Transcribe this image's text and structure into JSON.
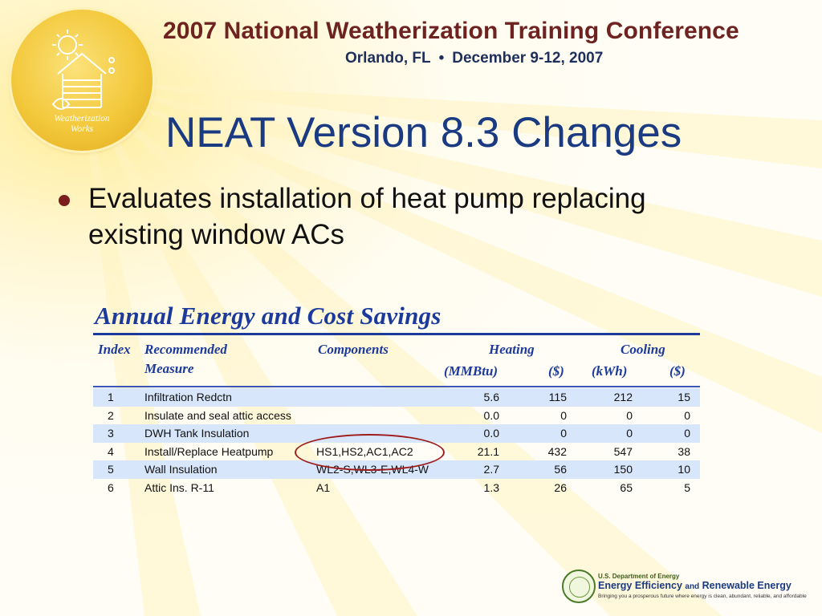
{
  "header": {
    "conference_title": "2007 National Weatherization Training Conference",
    "location": "Orlando, FL",
    "separator": "•",
    "dates": "December 9-12, 2007",
    "logo_text_line1": "Weatherization",
    "logo_text_line2": "Works"
  },
  "slide": {
    "title": "NEAT Version 8.3 Changes",
    "bullets": [
      {
        "text": "Evaluates installation of heat pump replacing existing window ACs"
      }
    ]
  },
  "table": {
    "title": "Annual Energy and Cost Savings",
    "headers": {
      "index": "Index",
      "measure_line1": "Recommended",
      "measure_line2": "Measure",
      "components": "Components",
      "heating": "Heating",
      "cooling": "Cooling",
      "mmbtu": "(MMBtu)",
      "heating_dollars": "($)",
      "kwh": "(kWh)",
      "cooling_dollars": "($)"
    },
    "rows": [
      {
        "index": "1",
        "measure": "Infiltration Redctn",
        "components": "",
        "mmbtu": "5.6",
        "heat_cost": "115",
        "kwh": "212",
        "cool_cost": "15"
      },
      {
        "index": "2",
        "measure": "Insulate and seal attic access",
        "components": "",
        "mmbtu": "0.0",
        "heat_cost": "0",
        "kwh": "0",
        "cool_cost": "0"
      },
      {
        "index": "3",
        "measure": "DWH Tank Insulation",
        "components": "",
        "mmbtu": "0.0",
        "heat_cost": "0",
        "kwh": "0",
        "cool_cost": "0"
      },
      {
        "index": "4",
        "measure": "Install/Replace Heatpump",
        "components": "HS1,HS2,AC1,AC2",
        "mmbtu": "21.1",
        "heat_cost": "432",
        "kwh": "547",
        "cool_cost": "38"
      },
      {
        "index": "5",
        "measure": "Wall Insulation",
        "components": "WL2-S,WL3-E,WL4-W",
        "mmbtu": "2.7",
        "heat_cost": "56",
        "kwh": "150",
        "cool_cost": "10"
      },
      {
        "index": "6",
        "measure": "Attic Ins. R-11",
        "components": "A1",
        "mmbtu": "1.3",
        "heat_cost": "26",
        "kwh": "65",
        "cool_cost": "5"
      }
    ],
    "highlighted_row_index": "4"
  },
  "footer": {
    "doe_line1": "U.S. Department of Energy",
    "doe_line2_a": "Energy Efficiency",
    "doe_line2_b": "and",
    "doe_line2_c": "Renewable Energy",
    "doe_line3": "Bringing you a prosperous future where energy is clean, abundant, reliable, and affordable"
  },
  "colors": {
    "conference_title": "#6e2321",
    "slide_title": "#1a3a82",
    "table_header": "#1b3a9c",
    "row_stripe": "#d8e6fb",
    "highlight_circle": "#9e1b1b",
    "logo_gold": "#f3c83b"
  }
}
